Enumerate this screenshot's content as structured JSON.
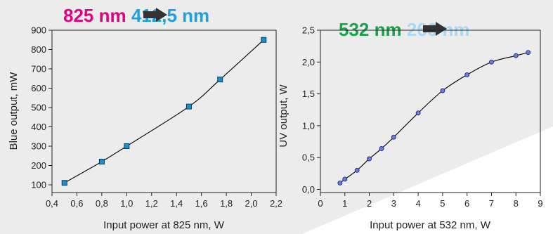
{
  "chart_data": [
    {
      "type": "line",
      "title_parts": {
        "from": "825 nm",
        "to": "412,5 nm"
      },
      "title_colors": {
        "from": "#e4007f",
        "arrow": "#333333",
        "to": "#1ba1e2"
      },
      "xlabel": "Input power at 825 nm, W",
      "ylabel": "Blue output, mW",
      "xlim": [
        0.4,
        2.2
      ],
      "ylim": [
        60,
        900
      ],
      "xticks": [
        "0,4",
        "0,6",
        "0,8",
        "1,0",
        "1,2",
        "1,4",
        "1,6",
        "1,8",
        "2,0",
        "2,2"
      ],
      "yticks": [
        "100",
        "200",
        "300",
        "400",
        "500",
        "600",
        "700",
        "800",
        "900"
      ],
      "marker": "square",
      "marker_color": "#1a8fc9",
      "series": [
        {
          "x": [
            0.5,
            0.8,
            1.0,
            1.5,
            1.75,
            2.1
          ],
          "y": [
            110,
            220,
            300,
            505,
            645,
            850
          ]
        }
      ]
    },
    {
      "type": "line",
      "title_parts": {
        "from": "532 nm",
        "to": "266 nm"
      },
      "title_colors": {
        "from": "#1aa34a",
        "arrow": "#333333",
        "to": "#a8d8f4"
      },
      "xlabel": "Input power at 532 nm, W",
      "ylabel": "UV output, W",
      "xlim": [
        0,
        9
      ],
      "ylim": [
        -0.05,
        2.5
      ],
      "xticks": [
        "0",
        "1",
        "2",
        "3",
        "4",
        "5",
        "6",
        "7",
        "8",
        "9"
      ],
      "yticks": [
        "0,0",
        "0,5",
        "1,0",
        "1,5",
        "2,0",
        "2,5"
      ],
      "marker": "circle",
      "marker_color": "#6b7de3",
      "series": [
        {
          "x": [
            0.8,
            1.0,
            1.5,
            2.0,
            2.5,
            3.0,
            4.0,
            5.0,
            6.0,
            7.0,
            8.0,
            8.5
          ],
          "y": [
            0.1,
            0.16,
            0.3,
            0.48,
            0.64,
            0.82,
            1.2,
            1.55,
            1.8,
            2.0,
            2.1,
            2.15
          ]
        }
      ]
    }
  ]
}
